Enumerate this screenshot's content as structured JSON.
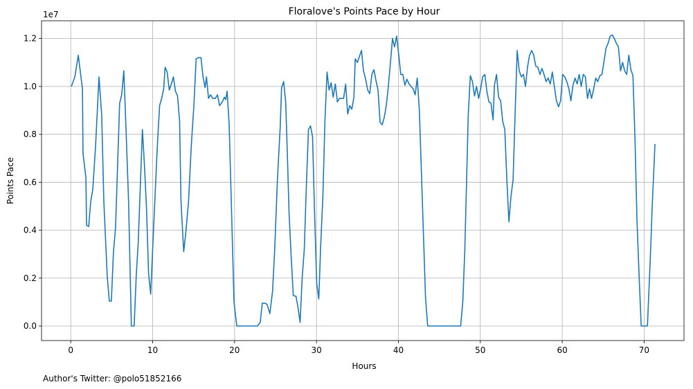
{
  "chart_data": {
    "type": "line",
    "title": "Floralove's Points Pace by Hour",
    "x_label": "Hours",
    "y_label": "Points Pace",
    "y_offset_label": "1e7",
    "footnote": "Author's Twitter: @polo51852166",
    "xlim": [
      -3.565,
      74.865
    ],
    "ylim": [
      -0.0607,
      1.274
    ],
    "xticks": [
      0,
      10,
      20,
      30,
      40,
      50,
      60,
      70
    ],
    "yticks": [
      {
        "value": 0,
        "label": "0.0"
      },
      0.2,
      0.4,
      0.6,
      0.8,
      {
        "value": 1,
        "label": "1.0"
      },
      1.2
    ],
    "grid": true,
    "series": [
      {
        "name": "Points Pace",
        "color": "#1f77b4",
        "x": [
          0.08,
          0.5,
          0.92,
          1.43,
          1.5,
          1.85,
          1.93,
          2.19,
          2.44,
          2.69,
          3.03,
          3.45,
          3.78,
          4.04,
          4.46,
          4.71,
          4.96,
          5.21,
          5.47,
          5.97,
          6.22,
          6.48,
          6.73,
          7.06,
          7.4,
          7.74,
          7.99,
          8.24,
          8.75,
          9.0,
          9.25,
          9.5,
          9.76,
          10.0,
          10.34,
          10.6,
          10.85,
          11.1,
          11.35,
          11.52,
          11.77,
          12.03,
          12.28,
          12.53,
          12.78,
          13.04,
          13.29,
          13.46,
          13.79,
          14.05,
          14.38,
          14.72,
          15.05,
          15.31,
          15.56,
          15.9,
          16.15,
          16.4,
          16.57,
          16.82,
          17.07,
          17.33,
          17.66,
          17.91,
          18.17,
          18.5,
          18.76,
          18.92,
          19.09,
          19.34,
          19.6,
          19.93,
          20.27,
          22.79,
          23.13,
          23.38,
          23.72,
          23.97,
          24.31,
          24.64,
          24.9,
          25.23,
          25.57,
          25.74,
          25.99,
          26.24,
          26.41,
          26.66,
          26.91,
          27.17,
          27.5,
          27.75,
          28.0,
          28.26,
          28.51,
          28.76,
          29.02,
          29.27,
          29.52,
          29.77,
          30.03,
          30.28,
          30.53,
          30.78,
          31.03,
          31.29,
          31.54,
          31.79,
          32.04,
          32.3,
          32.55,
          32.8,
          33.05,
          33.31,
          33.56,
          33.81,
          34.06,
          34.31,
          34.57,
          34.73,
          34.99,
          35.24,
          35.49,
          35.74,
          36.0,
          36.25,
          36.5,
          36.76,
          37.01,
          37.26,
          37.51,
          37.76,
          38.02,
          38.27,
          38.52,
          38.77,
          39.03,
          39.28,
          39.53,
          39.78,
          40.03,
          40.29,
          40.54,
          40.79,
          41.04,
          41.3,
          41.55,
          41.8,
          42.05,
          42.3,
          42.56,
          42.81,
          43.06,
          43.31,
          43.57,
          47.6,
          47.86,
          48.11,
          48.36,
          48.53,
          48.78,
          49.04,
          49.29,
          49.54,
          49.79,
          50.04,
          50.29,
          50.55,
          50.8,
          51.05,
          51.3,
          51.56,
          51.72,
          51.98,
          52.23,
          52.48,
          52.73,
          52.99,
          53.24,
          53.49,
          53.74,
          54.0,
          54.25,
          54.5,
          54.75,
          55.01,
          55.26,
          55.51,
          55.76,
          56.01,
          56.27,
          56.52,
          56.77,
          57.02,
          57.28,
          57.53,
          57.78,
          58.03,
          58.28,
          58.54,
          58.79,
          59.04,
          59.29,
          59.55,
          59.8,
          60.05,
          60.3,
          60.56,
          60.81,
          61.06,
          61.31,
          61.57,
          61.82,
          62.07,
          62.32,
          62.57,
          62.83,
          63.08,
          63.33,
          63.58,
          63.84,
          64.09,
          64.34,
          64.59,
          64.85,
          65.1,
          65.35,
          65.6,
          65.85,
          66.11,
          66.36,
          66.61,
          66.86,
          67.12,
          67.37,
          67.62,
          67.87,
          68.13,
          68.38,
          68.63,
          68.88,
          69.13,
          69.39,
          69.64,
          70.4,
          70.73,
          70.98,
          71.32
        ],
        "values": [
          1.0,
          1.04,
          1.13,
          0.99,
          0.72,
          0.62,
          0.42,
          0.415,
          0.52,
          0.57,
          0.75,
          1.04,
          0.88,
          0.52,
          0.205,
          0.104,
          0.104,
          0.306,
          0.41,
          0.93,
          0.965,
          1.065,
          0.84,
          0.52,
          0,
          0,
          0.205,
          0.35,
          0.82,
          0.67,
          0.49,
          0.22,
          0.133,
          0.32,
          0.58,
          0.77,
          0.92,
          0.95,
          0.99,
          1.08,
          1.06,
          0.985,
          1.01,
          1.04,
          0.98,
          0.96,
          0.855,
          0.52,
          0.31,
          0.39,
          0.52,
          0.755,
          0.93,
          1.115,
          1.12,
          1.12,
          1.04,
          0.995,
          1.04,
          0.95,
          0.965,
          0.95,
          0.95,
          0.965,
          0.92,
          0.935,
          0.955,
          0.945,
          0.98,
          0.84,
          0.52,
          0.1,
          0,
          0,
          0.015,
          0.095,
          0.095,
          0.09,
          0.052,
          0.147,
          0.32,
          0.61,
          0.83,
          0.995,
          1.02,
          0.935,
          0.755,
          0.465,
          0.29,
          0.127,
          0.124,
          0.075,
          0.015,
          0.205,
          0.32,
          0.58,
          0.82,
          0.835,
          0.79,
          0.465,
          0.176,
          0.113,
          0.35,
          0.54,
          0.855,
          1.06,
          0.985,
          1.015,
          0.955,
          1.01,
          0.935,
          0.95,
          0.95,
          0.95,
          1.01,
          0.885,
          0.92,
          0.905,
          0.955,
          1.115,
          1.1,
          1.125,
          1.15,
          1.065,
          1.03,
          0.985,
          0.97,
          1.05,
          1.07,
          1.025,
          0.985,
          0.85,
          0.84,
          0.87,
          0.92,
          1.0,
          1.1,
          1.2,
          1.165,
          1.21,
          1.135,
          1.05,
          1.05,
          1.005,
          1.03,
          1.01,
          1.0,
          0.99,
          0.965,
          1.035,
          0.9,
          0.64,
          0.38,
          0.12,
          0,
          0,
          0.1,
          0.32,
          0.655,
          0.885,
          1.045,
          1.02,
          0.96,
          1.0,
          0.95,
          0.99,
          1.04,
          1.05,
          0.98,
          0.935,
          0.93,
          0.86,
          1.005,
          1.05,
          0.955,
          0.94,
          0.855,
          0.82,
          0.61,
          0.435,
          0.54,
          0.61,
          0.89,
          1.15,
          1.065,
          1.04,
          1.05,
          1.0,
          1.08,
          1.13,
          1.15,
          1.13,
          1.085,
          1.08,
          1.05,
          1.075,
          1.05,
          1.02,
          1.035,
          1.01,
          1.06,
          1.0,
          0.94,
          0.915,
          0.94,
          1.05,
          1.04,
          1.02,
          0.99,
          0.94,
          1.005,
          1.035,
          1.01,
          1.05,
          1.0,
          1.05,
          1.04,
          0.95,
          0.99,
          0.95,
          0.99,
          1.035,
          1.02,
          1.045,
          1.05,
          1.105,
          1.16,
          1.18,
          1.21,
          1.215,
          1.2,
          1.18,
          1.165,
          1.065,
          1.1,
          1.065,
          1.05,
          1.13,
          1.07,
          1.045,
          0.785,
          0.435,
          0.205,
          0,
          0,
          0.265,
          0.495,
          0.76
        ]
      }
    ]
  }
}
